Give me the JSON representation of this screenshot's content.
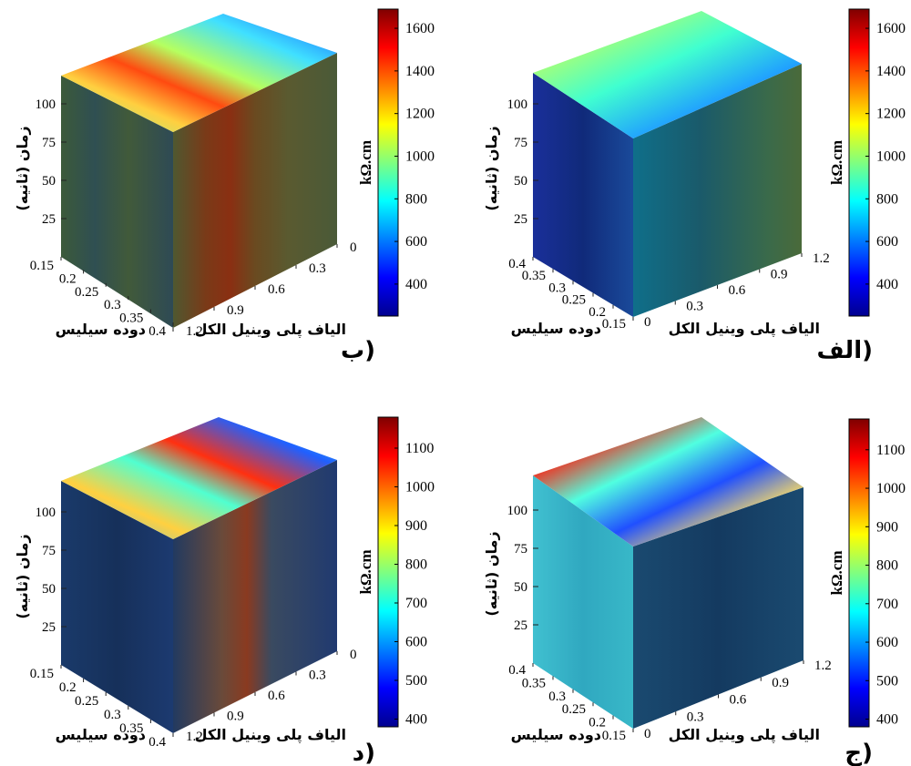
{
  "chart_data": [
    {
      "id": "b",
      "type": "heatmap",
      "panel_label": "(ب",
      "x_label": "دوده سیلیس",
      "y_label": "الیاف پلی وینیل الکل",
      "z_label": "زمان (ثانیه)",
      "x_ticks": [
        "0.15",
        "0.2",
        "0.25",
        "0.3",
        "0.35",
        "0.4"
      ],
      "y_ticks": [
        "1.2",
        "0.9",
        "0.6",
        "0.3",
        "0"
      ],
      "z_ticks": [
        "25",
        "50",
        "75",
        "100"
      ],
      "colorbar_unit": "kΩ.cm",
      "colorbar_ticks": [
        "400",
        "600",
        "800",
        "1000",
        "1200",
        "1400",
        "1600"
      ],
      "clim": [
        250,
        1690
      ],
      "colormap": "jet"
    },
    {
      "id": "alef",
      "type": "heatmap",
      "panel_label": "(الف",
      "x_label": "دوده سیلیس",
      "y_label": "الیاف پلی وینیل الکل",
      "z_label": "زمان (ثانیه)",
      "x_ticks": [
        "0.4",
        "0.35",
        "0.3",
        "0.25",
        "0.2",
        "0.15"
      ],
      "y_ticks": [
        "0",
        "0.3",
        "0.6",
        "0.9",
        "1.2"
      ],
      "z_ticks": [
        "25",
        "50",
        "75",
        "100"
      ],
      "colorbar_unit": "kΩ.cm",
      "colorbar_ticks": [
        "400",
        "600",
        "800",
        "1000",
        "1200",
        "1400",
        "1600"
      ],
      "clim": [
        250,
        1690
      ],
      "colormap": "jet"
    },
    {
      "id": "dal",
      "type": "heatmap",
      "panel_label": "(د",
      "x_label": "دوده سیلیس",
      "y_label": "الیاف پلی وینیل الکل",
      "z_label": "زمان (ثانیه)",
      "x_ticks": [
        "0.15",
        "0.2",
        "0.25",
        "0.3",
        "0.35",
        "0.4"
      ],
      "y_ticks": [
        "1.2",
        "0.9",
        "0.6",
        "0.3",
        "0"
      ],
      "z_ticks": [
        "25",
        "50",
        "75",
        "100"
      ],
      "colorbar_unit": "kΩ.cm",
      "colorbar_ticks": [
        "400",
        "500",
        "600",
        "700",
        "800",
        "900",
        "1000",
        "1100"
      ],
      "clim": [
        380,
        1180
      ],
      "colormap": "jet"
    },
    {
      "id": "jim",
      "type": "heatmap",
      "panel_label": "(ج",
      "x_label": "دوده سیلیس",
      "y_label": "الیاف پلی وینیل الکل",
      "z_label": "زمان (ثانیه)",
      "x_ticks": [
        "0.4",
        "0.35",
        "0.3",
        "0.25",
        "0.2",
        "0.15"
      ],
      "y_ticks": [
        "0",
        "0.3",
        "0.6",
        "0.9",
        "1.2"
      ],
      "z_ticks": [
        "25",
        "50",
        "75",
        "100"
      ],
      "colorbar_unit": "kΩ.cm",
      "colorbar_ticks": [
        "400",
        "500",
        "600",
        "700",
        "800",
        "900",
        "1000",
        "1100"
      ],
      "clim": [
        380,
        1180
      ],
      "colormap": "jet"
    }
  ],
  "colors": {
    "jet": [
      "#00008f",
      "#0000ff",
      "#00ffff",
      "#ffff00",
      "#ff0000",
      "#800000"
    ]
  }
}
